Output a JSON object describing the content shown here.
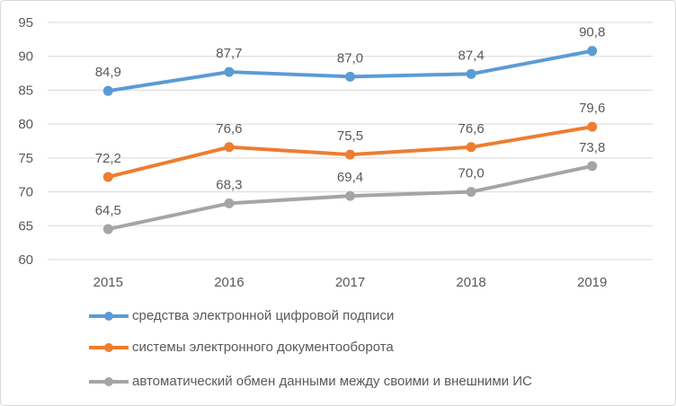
{
  "chart_data": {
    "type": "line",
    "title": "",
    "xlabel": "",
    "ylabel": "",
    "categories": [
      "2015",
      "2016",
      "2017",
      "2018",
      "2019"
    ],
    "ylim": [
      60,
      95
    ],
    "yticks": [
      "60",
      "65",
      "70",
      "75",
      "80",
      "85",
      "90",
      "95"
    ],
    "grid": true,
    "legend_position": "bottom",
    "series": [
      {
        "name": "средства электронной цифровой подписи",
        "color": "#5B9BD5",
        "values": [
          84.9,
          87.7,
          87.0,
          87.4,
          90.8
        ],
        "labels": [
          "84,9",
          "87,7",
          "87,0",
          "87,4",
          "90,8"
        ]
      },
      {
        "name": "системы электронного документооборота",
        "color": "#ED7D31",
        "values": [
          72.2,
          76.6,
          75.5,
          76.6,
          79.6
        ],
        "labels": [
          "72,2",
          "76,6",
          "75,5",
          "76,6",
          "79,6"
        ]
      },
      {
        "name": "автоматический обмен данными между своими и внешними ИС",
        "color": "#A5A5A5",
        "values": [
          64.5,
          68.3,
          69.4,
          70.0,
          73.8
        ],
        "labels": [
          "64,5",
          "68,3",
          "69,4",
          "70,0",
          "73,8"
        ]
      }
    ]
  }
}
